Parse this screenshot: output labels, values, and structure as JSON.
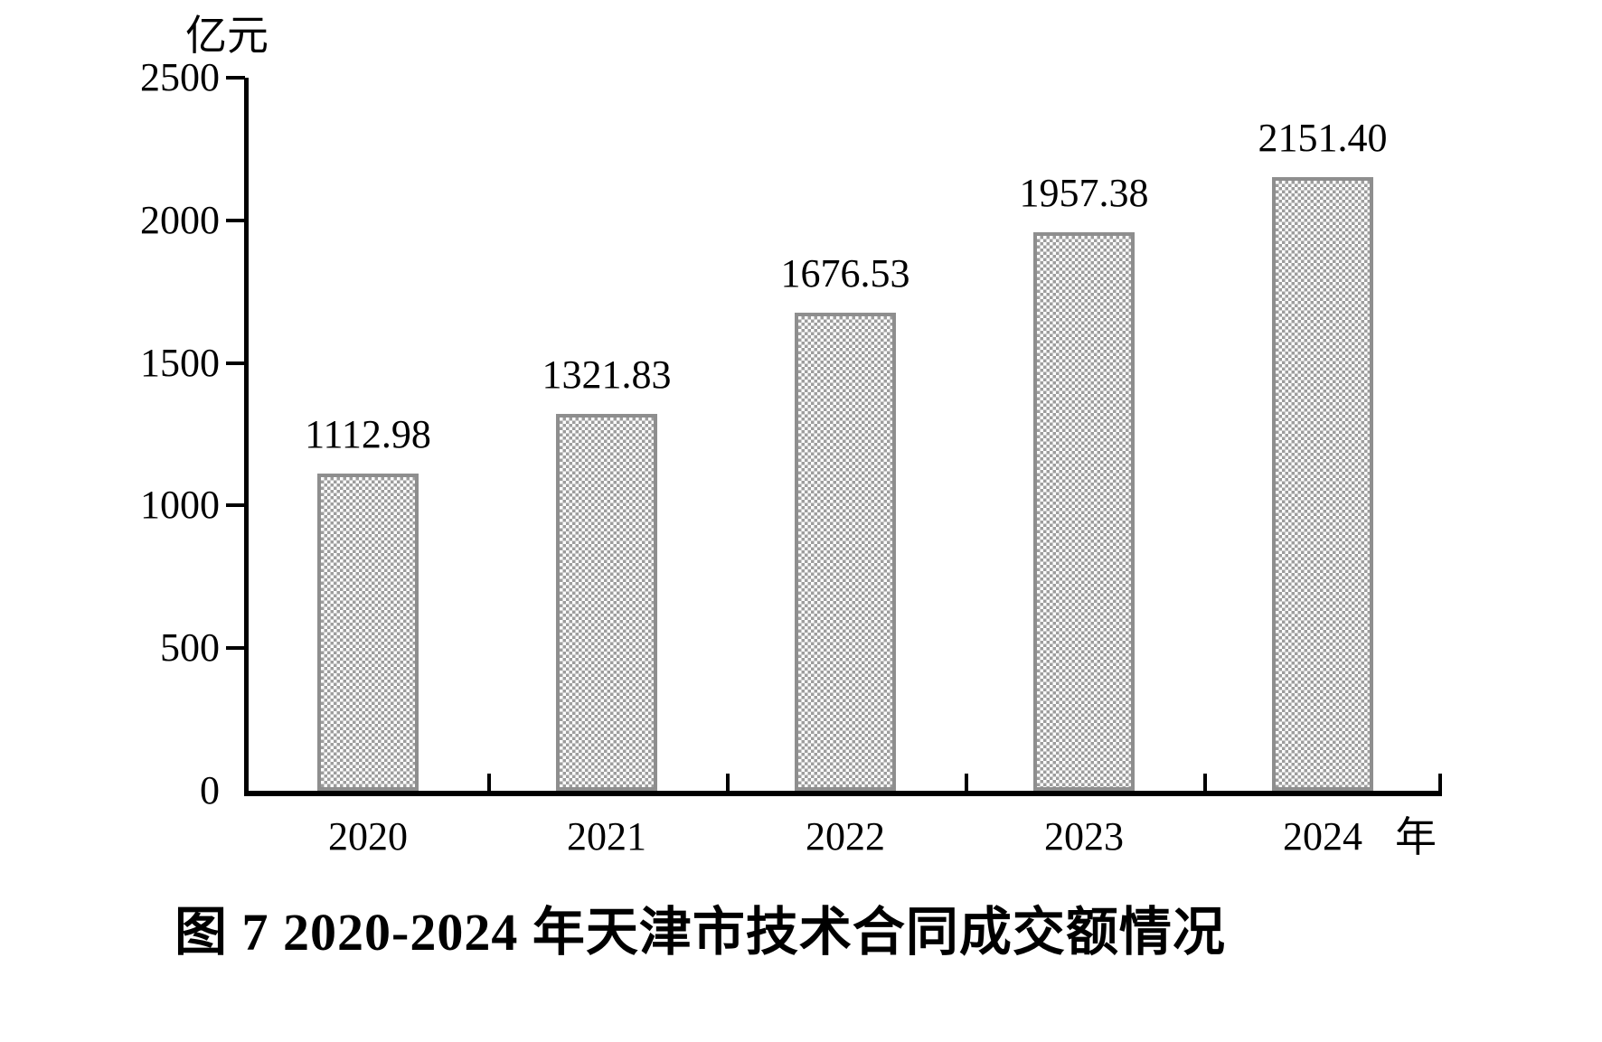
{
  "colors": {
    "background": "#ffffff",
    "text": "#000000",
    "axis": "#000000",
    "bar_border": "#8e8e8e",
    "bar_pattern_gray": "#9d9d9d",
    "bar_pattern_white": "#ffffff"
  },
  "chart": {
    "unit_label": "亿元",
    "x_axis_unit_label": "年",
    "y_tick_labels": [
      "0",
      "500",
      "1000",
      "1500",
      "2000",
      "2500"
    ],
    "caption": "图 7  2020-2024 年天津市技术合同成交额情况"
  },
  "chart_data": {
    "type": "bar",
    "title": "图 7 2020-2024 年天津市技术合同成交额情况",
    "categories": [
      "2020",
      "2021",
      "2022",
      "2023",
      "2024"
    ],
    "values": [
      1112.98,
      1321.83,
      1676.53,
      1957.38,
      2151.4
    ],
    "value_labels": [
      "1112.98",
      "1321.83",
      "1676.53",
      "1957.38",
      "2151.40"
    ],
    "xlabel": "年",
    "ylabel": "亿元",
    "ylim": [
      0,
      2500
    ],
    "ytick_interval": 500,
    "grid": false,
    "legend_position": "none",
    "bar_fill_style": "gray checkerboard pattern with gray border",
    "data_labels_position": "above bars"
  }
}
